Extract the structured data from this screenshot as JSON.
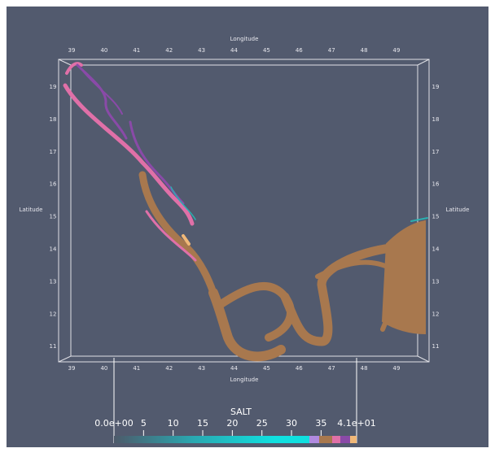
{
  "axes": {
    "x_title": "Longitude",
    "y_title": "Latitude",
    "x_ticks": [
      39,
      40,
      41,
      42,
      43,
      44,
      45,
      46,
      47,
      48,
      49
    ],
    "y_ticks": [
      19,
      18,
      17,
      16,
      15,
      14,
      13,
      12,
      11
    ]
  },
  "colorbar": {
    "title": "SALT",
    "range": [
      0,
      41
    ],
    "ticks": [
      {
        "value": 0,
        "label": "0.0e+00"
      },
      5,
      10,
      15,
      20,
      25,
      30,
      35,
      {
        "value": 41,
        "label": "4.1e+01"
      }
    ]
  }
}
